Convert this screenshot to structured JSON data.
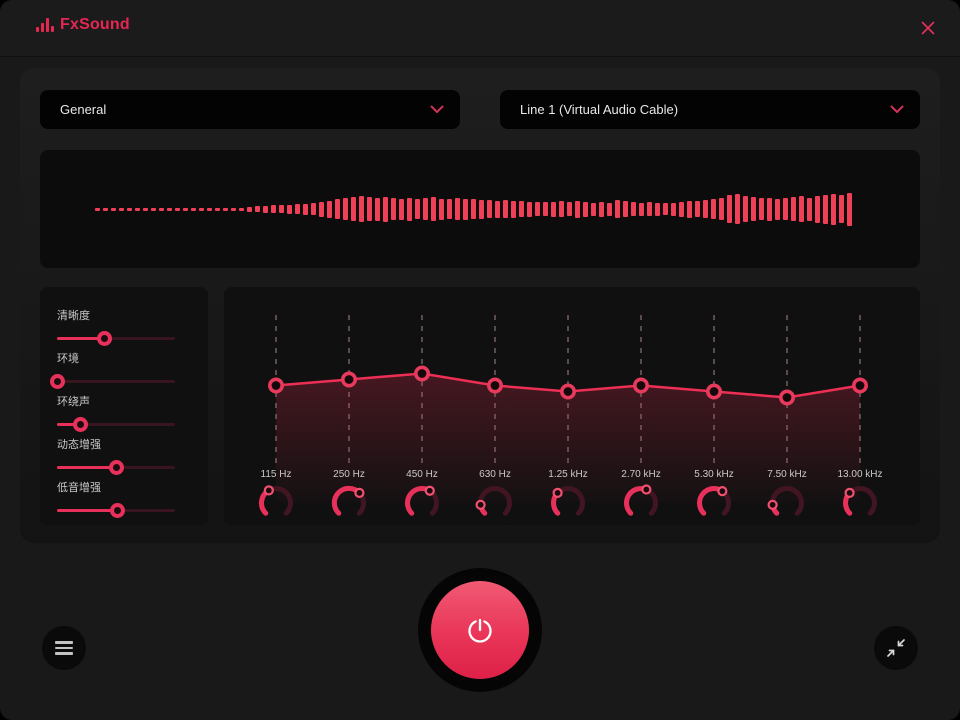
{
  "app": {
    "name": "FxSound"
  },
  "device_bar": {
    "preset": {
      "value": "General"
    },
    "output": {
      "value": "Line 1 (Virtual Audio Cable)"
    }
  },
  "colors": {
    "accent": "#e8315a",
    "line": "#ee2f55",
    "bar": "#ef4057",
    "slider_track": "#38151f",
    "knob_track": "#411521",
    "dash": "#5a4b50",
    "point_ring": "#e73a5c",
    "point_fill": "#15080b",
    "fill_top": "rgba(224,46,80,0.26)",
    "fill_bottom": "rgba(224,46,80,0.02)"
  },
  "spectrum": {
    "bars": [
      3,
      3,
      3,
      3,
      3,
      3,
      3,
      3,
      3,
      3,
      3,
      3,
      3,
      3,
      3,
      3,
      3,
      3,
      3,
      5,
      6,
      7,
      8,
      8,
      9,
      10,
      11,
      12,
      15,
      17,
      20,
      22,
      24,
      26,
      24,
      23,
      25,
      22,
      21,
      23,
      20,
      22,
      24,
      21,
      20,
      22,
      21,
      20,
      19,
      18,
      17,
      18,
      17,
      16,
      15,
      14,
      14,
      15,
      16,
      14,
      17,
      15,
      13,
      15,
      13,
      18,
      16,
      14,
      13,
      14,
      13,
      12,
      13,
      15,
      17,
      16,
      18,
      20,
      22,
      28,
      30,
      26,
      24,
      22,
      23,
      21,
      22,
      24,
      26,
      23,
      27,
      29,
      31,
      28,
      33
    ]
  },
  "effects": {
    "items": [
      {
        "label": "清晰度",
        "value": 0.4
      },
      {
        "label": "环境",
        "value": 0.0
      },
      {
        "label": "环绕声",
        "value": 0.2
      },
      {
        "label": "动态增强",
        "value": 0.5
      },
      {
        "label": "低音增强",
        "value": 0.51
      }
    ]
  },
  "equalizer": {
    "bands": [
      {
        "freq": "115 Hz",
        "knob": 0.39,
        "level": 0.47
      },
      {
        "freq": "250 Hz",
        "knob": 0.67,
        "level": 0.43
      },
      {
        "freq": "450 Hz",
        "knob": 0.62,
        "level": 0.39
      },
      {
        "freq": "630 Hz",
        "knob": 0.14,
        "level": 0.47
      },
      {
        "freq": "1.25 kHz",
        "knob": 0.33,
        "level": 0.51
      },
      {
        "freq": "2.70 kHz",
        "knob": 0.58,
        "level": 0.47
      },
      {
        "freq": "5.30 kHz",
        "knob": 0.63,
        "level": 0.51
      },
      {
        "freq": "7.50 kHz",
        "knob": 0.14,
        "level": 0.55
      },
      {
        "freq": "13.00 kHz",
        "knob": 0.33,
        "level": 0.47
      }
    ]
  }
}
